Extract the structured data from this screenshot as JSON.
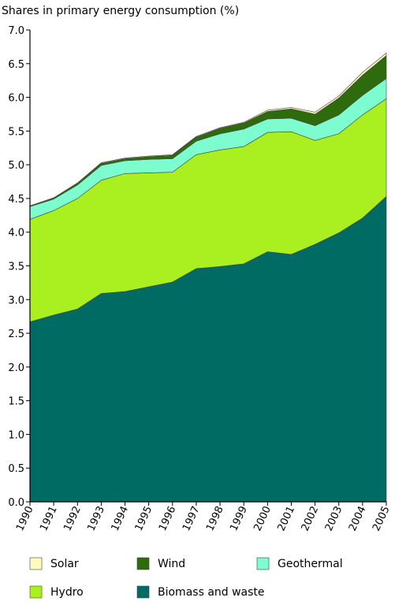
{
  "chart_data": {
    "type": "area",
    "stacked": true,
    "ylabel": "Shares in primary energy consumption (%)",
    "xlabel": "",
    "ylim": [
      0,
      7.0
    ],
    "yticks": [
      "0.0",
      "0.5",
      "1.0",
      "1.5",
      "2.0",
      "2.5",
      "3.0",
      "3.5",
      "4.0",
      "4.5",
      "5.0",
      "5.5",
      "6.0",
      "6.5",
      "7.0"
    ],
    "grid": false,
    "legend_position": "bottom",
    "categories": [
      "1990",
      "1991",
      "1992",
      "1993",
      "1994",
      "1995",
      "1996",
      "1997",
      "1998",
      "1999",
      "2000",
      "2001",
      "2002",
      "2003",
      "2004",
      "2005"
    ],
    "series": [
      {
        "name": "Biomass and waste",
        "color": "#006b63",
        "values": [
          2.67,
          2.77,
          2.86,
          3.09,
          3.12,
          3.19,
          3.26,
          3.46,
          3.49,
          3.53,
          3.71,
          3.67,
          3.82,
          3.99,
          4.21,
          4.53
        ]
      },
      {
        "name": "Hydro",
        "color": "#aaef1f",
        "values": [
          1.52,
          1.55,
          1.64,
          1.68,
          1.75,
          1.69,
          1.63,
          1.69,
          1.73,
          1.74,
          1.77,
          1.82,
          1.54,
          1.47,
          1.53,
          1.45
        ]
      },
      {
        "name": "Geothermal",
        "color": "#7dfcd0",
        "values": [
          0.19,
          0.17,
          0.2,
          0.22,
          0.19,
          0.2,
          0.2,
          0.2,
          0.24,
          0.26,
          0.2,
          0.2,
          0.22,
          0.28,
          0.29,
          0.3
        ]
      },
      {
        "name": "Wind",
        "color": "#2e6b0c",
        "values": [
          0.01,
          0.02,
          0.03,
          0.03,
          0.03,
          0.04,
          0.05,
          0.06,
          0.08,
          0.09,
          0.11,
          0.14,
          0.17,
          0.25,
          0.3,
          0.34
        ]
      },
      {
        "name": "Solar",
        "color": "#fffac0",
        "values": [
          0.0,
          0.0,
          0.0,
          0.01,
          0.01,
          0.01,
          0.01,
          0.01,
          0.01,
          0.01,
          0.02,
          0.02,
          0.03,
          0.03,
          0.04,
          0.04
        ]
      }
    ],
    "legend_rows": [
      [
        "Solar",
        "Wind",
        "Geothermal"
      ],
      [
        "Hydro",
        "Biomass and waste"
      ]
    ]
  }
}
